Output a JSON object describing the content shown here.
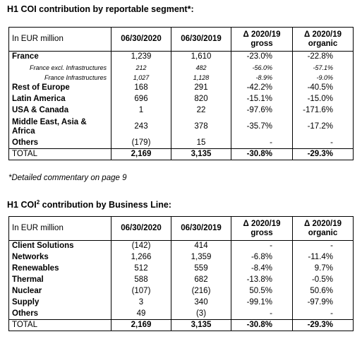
{
  "section1": {
    "title": "H1 COI contribution by reportable segment*:",
    "headers": [
      "In EUR million",
      "06/30/2020",
      "06/30/2019",
      "Δ 2020/19 gross",
      "Δ 2020/19 organic"
    ],
    "header_delta1_line1": "Δ 2020/19",
    "header_delta1_line2": "gross",
    "header_delta2_line1": "Δ 2020/19",
    "header_delta2_line2": "organic",
    "rows": [
      {
        "label": "France",
        "v2020": "1,239",
        "v2019": "1,610",
        "gross": "-23.0%",
        "organic": "-22.8%"
      },
      {
        "label": "France excl. Infrastructures",
        "v2020": "212",
        "v2019": "482",
        "gross": "-56.0%",
        "organic": "-57.1%"
      },
      {
        "label": "France Infrastructures",
        "v2020": "1,027",
        "v2019": "1,128",
        "gross": "-8.9%",
        "organic": "-9.0%"
      },
      {
        "label": "Rest of Europe",
        "v2020": "168",
        "v2019": "291",
        "gross": "-42.2%",
        "organic": "-40.5%"
      },
      {
        "label": "Latin America",
        "v2020": "696",
        "v2019": "820",
        "gross": "-15.1%",
        "organic": "-15.0%"
      },
      {
        "label": "USA & Canada",
        "v2020": "1",
        "v2019": "22",
        "gross": "-97.6%",
        "organic": "-171.6%"
      },
      {
        "label": "Middle East, Asia &",
        "label2": "Africa",
        "v2020": "243",
        "v2019": "378",
        "gross": "-35.7%",
        "organic": "-17.2%"
      },
      {
        "label": "Others",
        "v2020": "(179)",
        "v2019": "15",
        "gross": "-",
        "organic": "-"
      },
      {
        "label": "TOTAL",
        "v2020": "2,169",
        "v2019": "3,135",
        "gross": "-30.8%",
        "organic": "-29.3%"
      }
    ],
    "footnote": "*Detailed commentary on page 9"
  },
  "section2": {
    "title_pre": "H1 COI",
    "title_sup": "2",
    "title_post": " contribution by Business Line:",
    "header_label": "In EUR million",
    "header_2020": "06/30/2020",
    "header_2019": "06/30/2019",
    "header_delta1_line1": "Δ 2020/19",
    "header_delta1_line2": "gross",
    "header_delta2_line1": "Δ 2020/19",
    "header_delta2_line2": "organic",
    "rows": [
      {
        "label": "Client Solutions",
        "v2020": "(142)",
        "v2019": "414",
        "gross": "-",
        "organic": "-"
      },
      {
        "label": "Networks",
        "v2020": "1,266",
        "v2019": "1,359",
        "gross": "-6.8%",
        "organic": "-11.4%"
      },
      {
        "label": "Renewables",
        "v2020": "512",
        "v2019": "559",
        "gross": "-8.4%",
        "organic": "9.7%"
      },
      {
        "label": "Thermal",
        "v2020": "588",
        "v2019": "682",
        "gross": "-13.8%",
        "organic": "-0.5%"
      },
      {
        "label": "Nuclear",
        "v2020": "(107)",
        "v2019": "(216)",
        "gross": "50.5%",
        "organic": "50.6%"
      },
      {
        "label": "Supply",
        "v2020": "3",
        "v2019": "340",
        "gross": "-99.1%",
        "organic": "-97.9%"
      },
      {
        "label": "Others",
        "v2020": "49",
        "v2019": "(3)",
        "gross": "-",
        "organic": "-"
      },
      {
        "label": "TOTAL",
        "v2020": "2,169",
        "v2019": "3,135",
        "gross": "-30.8%",
        "organic": "-29.3%"
      }
    ]
  }
}
